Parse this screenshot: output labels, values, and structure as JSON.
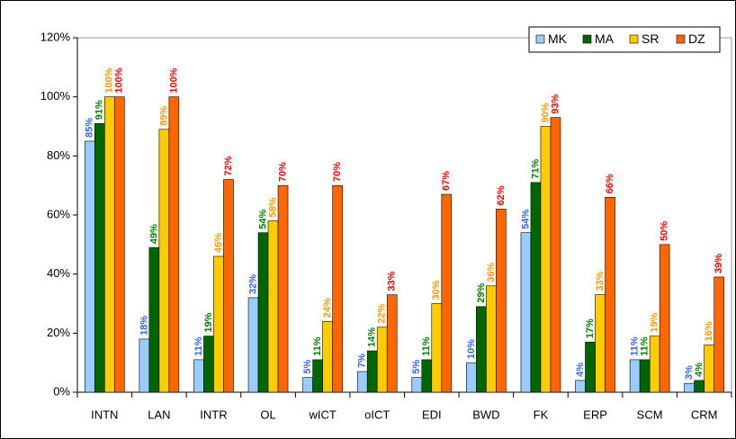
{
  "chart_data": {
    "type": "bar",
    "categories": [
      "INTN",
      "LAN",
      "INTR",
      "OL",
      "wICT",
      "oICT",
      "EDI",
      "BWD",
      "FK",
      "ERP",
      "SCM",
      "CRM"
    ],
    "series": [
      {
        "name": "MK",
        "color": "#99ccff",
        "label_color": "#3366ff",
        "values": [
          85,
          18,
          11,
          32,
          5,
          7,
          5,
          10,
          54,
          4,
          11,
          3
        ],
        "value_labels": [
          "85%",
          "18%",
          "11%",
          "32%",
          "5%",
          "7%",
          "5%",
          "10%",
          "54%",
          "4%",
          "11%",
          "3%"
        ]
      },
      {
        "name": "MA",
        "color": "#006600",
        "label_color": "#008000",
        "values": [
          91,
          49,
          19,
          54,
          11,
          14,
          11,
          29,
          71,
          17,
          11,
          4
        ],
        "value_labels": [
          "91%",
          "49%",
          "19%",
          "54%",
          "11%",
          "14%",
          "11%",
          "29%",
          "71%",
          "17%",
          "11%",
          "4%"
        ]
      },
      {
        "name": "SR",
        "color": "#ffcc00",
        "label_color": "#ff9900",
        "values": [
          100,
          89,
          46,
          58,
          24,
          22,
          30,
          36,
          90,
          33,
          19,
          16
        ],
        "value_labels": [
          "100%",
          "89%",
          "46%",
          "58%",
          "24%",
          "22%",
          "30%",
          "36%",
          "90%",
          "33%",
          "19%",
          "16%"
        ]
      },
      {
        "name": "DZ",
        "color": "#ff6600",
        "label_color": "#ff0000",
        "values": [
          100,
          100,
          72,
          70,
          70,
          33,
          67,
          62,
          93,
          66,
          50,
          39
        ],
        "value_labels": [
          "100%",
          "100%",
          "72%",
          "70%",
          "70%",
          "33%",
          "67%",
          "62%",
          "93%",
          "66%",
          "50%",
          "39%"
        ]
      }
    ],
    "ylim": [
      0,
      120
    ],
    "yticks": [
      {
        "value": 0,
        "label": "0%"
      },
      {
        "value": 20,
        "label": "20%"
      },
      {
        "value": 40,
        "label": "40%"
      },
      {
        "value": 60,
        "label": "60%"
      },
      {
        "value": 80,
        "label": "80%"
      },
      {
        "value": 100,
        "label": "100%"
      },
      {
        "value": 120,
        "label": "120%"
      }
    ],
    "grid": false,
    "legend": "top-right"
  }
}
